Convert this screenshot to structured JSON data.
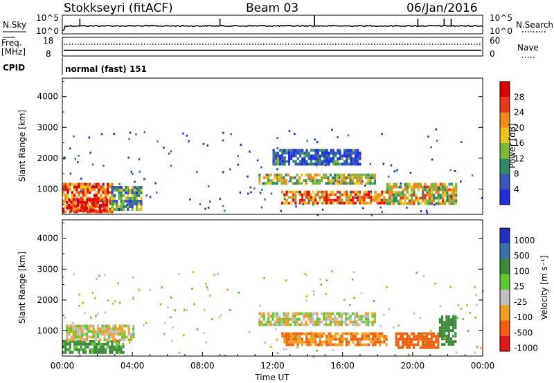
{
  "header": {
    "station": "Stokkseyri (fitACF)",
    "beam": "Beam 03",
    "date": "06/Jan/2016"
  },
  "chart_data": [
    {
      "type": "line",
      "panel": "noise",
      "left_label": "N.Sky",
      "right_label": "N.Search",
      "left_ticks": [
        "10^5",
        "10^0"
      ],
      "right_ticks": [
        "10^5",
        "10^0"
      ],
      "x_range_hours": [
        0,
        24
      ],
      "spikes_at_hours": [
        1.0,
        9.0,
        14.4,
        20.3,
        21.8,
        22.2
      ]
    },
    {
      "type": "line",
      "panel": "frequency",
      "left_label": "Freq.",
      "left_unit": "[MHz]",
      "left_ticks": [
        "18",
        "8"
      ],
      "right_label": "Nave",
      "right_ticks": [
        "60",
        "0"
      ],
      "frequency_mhz": 10.5,
      "nave_level": 40
    },
    {
      "type": "table",
      "panel": "cpid",
      "label": "CPID",
      "program": "normal (fast) 151"
    },
    {
      "type": "heatmap",
      "panel": "power",
      "ylabel": "Slant Range [km]",
      "yticks": [
        "1000",
        "2000",
        "3000",
        "4000"
      ],
      "ylim": [
        180,
        4600
      ],
      "colorbar_label": "Power [dB]",
      "colorbar_ticks": [
        "4",
        "8",
        "12",
        "16",
        "20",
        "24",
        "28"
      ],
      "colors": [
        "#2030e0",
        "#3a58b8",
        "#2e8a6a",
        "#78b838",
        "#e8c420",
        "#f08a18",
        "#e83818",
        "#e00000"
      ],
      "regions": [
        {
          "t0": 0.0,
          "t1": 2.8,
          "r0": 300,
          "r1": 1200,
          "level": 0.75
        },
        {
          "t0": 0.2,
          "t1": 2.5,
          "r0": 300,
          "r1": 700,
          "level": 0.95
        },
        {
          "t0": 2.8,
          "t1": 4.5,
          "r0": 300,
          "r1": 1100,
          "level": 0.35
        },
        {
          "t0": 11.2,
          "t1": 17.8,
          "r0": 1200,
          "r1": 1500,
          "level": 0.5
        },
        {
          "t0": 12.5,
          "t1": 18.5,
          "r0": 550,
          "r1": 950,
          "level": 0.7
        },
        {
          "t0": 18.5,
          "t1": 22.5,
          "r0": 500,
          "r1": 1200,
          "level": 0.55
        },
        {
          "t0": 12.0,
          "t1": 17.0,
          "r0": 1800,
          "r1": 2300,
          "level": 0.15
        }
      ]
    },
    {
      "type": "heatmap",
      "panel": "velocity",
      "ylabel": "Slant Range [km]",
      "yticks": [
        "1000",
        "2000",
        "3000",
        "4000"
      ],
      "ylim": [
        180,
        4600
      ],
      "xlabel": "Time UT",
      "xticks": [
        "00:00",
        "04:00",
        "08:00",
        "12:00",
        "16:00",
        "20:00",
        "00:00"
      ],
      "colorbar_label": "Velocity [m s⁻¹]",
      "colorbar_ticks": [
        "1000",
        "500",
        "100",
        "25",
        "-25",
        "-100",
        "-500",
        "-1000"
      ],
      "colors": [
        "#2030c0",
        "#3c70a8",
        "#3a8a3a",
        "#60c830",
        "#c0c0c0",
        "#f0a020",
        "#f06010",
        "#e01818"
      ],
      "regions": [
        {
          "t0": 0.0,
          "t1": 3.5,
          "r0": 300,
          "r1": 700,
          "value": 100
        },
        {
          "t0": 0.2,
          "t1": 4.0,
          "r0": 700,
          "r1": 1200,
          "value": 0
        },
        {
          "t0": 11.2,
          "t1": 17.8,
          "r0": 1200,
          "r1": 1600,
          "value": 0
        },
        {
          "t0": 12.5,
          "t1": 18.5,
          "r0": 550,
          "r1": 950,
          "value": -100
        },
        {
          "t0": 19.0,
          "t1": 21.5,
          "r0": 450,
          "r1": 950,
          "value": -300
        },
        {
          "t0": 21.5,
          "t1": 22.5,
          "r0": 600,
          "r1": 1500,
          "value": 200
        }
      ]
    }
  ]
}
